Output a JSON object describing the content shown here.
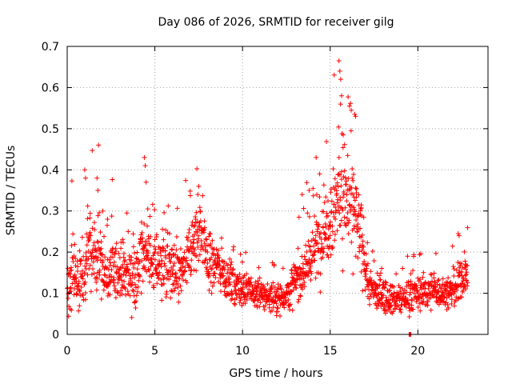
{
  "chart_data": {
    "type": "scatter",
    "title": "Day 086 of 2026, SRMTID for receiver gilg",
    "xlabel": "GPS time / hours",
    "ylabel": "SRMTID / TECUs",
    "xlim": [
      0,
      24
    ],
    "ylim": [
      0,
      0.7
    ],
    "xticks": [
      0,
      5,
      10,
      15,
      20
    ],
    "xtick_labels": [
      "0",
      "5",
      "10",
      "15",
      "20"
    ],
    "yticks": [
      0,
      0.1,
      0.2,
      0.3,
      0.4,
      0.5,
      0.6,
      0.7
    ],
    "ytick_labels": [
      "0",
      "0.1",
      "0.2",
      "0.3",
      "0.4",
      "0.5",
      "0.6",
      "0.7"
    ],
    "grid": true,
    "marker": "+",
    "color": "#ff0000",
    "envelope": [
      [
        0.0,
        0.12,
        0.06
      ],
      [
        0.3,
        0.16,
        0.06
      ],
      [
        0.6,
        0.12,
        0.05
      ],
      [
        1.0,
        0.14,
        0.05
      ],
      [
        1.2,
        0.22,
        0.08
      ],
      [
        1.6,
        0.16,
        0.05
      ],
      [
        1.8,
        0.22,
        0.07
      ],
      [
        2.2,
        0.14,
        0.05
      ],
      [
        2.8,
        0.15,
        0.05
      ],
      [
        3.4,
        0.15,
        0.05
      ],
      [
        4.0,
        0.14,
        0.05
      ],
      [
        4.4,
        0.22,
        0.07
      ],
      [
        4.8,
        0.17,
        0.05
      ],
      [
        5.4,
        0.18,
        0.06
      ],
      [
        6.0,
        0.15,
        0.05
      ],
      [
        6.6,
        0.15,
        0.05
      ],
      [
        7.2,
        0.22,
        0.06
      ],
      [
        7.6,
        0.26,
        0.06
      ],
      [
        8.0,
        0.18,
        0.05
      ],
      [
        8.6,
        0.17,
        0.04
      ],
      [
        9.2,
        0.13,
        0.035
      ],
      [
        10.0,
        0.11,
        0.03
      ],
      [
        11.0,
        0.095,
        0.025
      ],
      [
        12.0,
        0.09,
        0.025
      ],
      [
        12.6,
        0.1,
        0.03
      ],
      [
        13.2,
        0.14,
        0.04
      ],
      [
        13.8,
        0.18,
        0.05
      ],
      [
        14.4,
        0.23,
        0.06
      ],
      [
        14.8,
        0.27,
        0.07
      ],
      [
        15.3,
        0.32,
        0.09
      ],
      [
        15.6,
        0.36,
        0.1
      ],
      [
        16.0,
        0.33,
        0.09
      ],
      [
        16.4,
        0.29,
        0.08
      ],
      [
        16.9,
        0.2,
        0.06
      ],
      [
        17.2,
        0.12,
        0.04
      ],
      [
        17.6,
        0.1,
        0.03
      ],
      [
        18.5,
        0.09,
        0.025
      ],
      [
        19.0,
        0.08,
        0.025
      ],
      [
        19.6,
        0.1,
        0.03
      ],
      [
        20.2,
        0.1,
        0.03
      ],
      [
        21.0,
        0.11,
        0.03
      ],
      [
        21.6,
        0.1,
        0.03
      ],
      [
        22.2,
        0.11,
        0.03
      ],
      [
        22.5,
        0.14,
        0.04
      ],
      [
        22.8,
        0.14,
        0.03
      ]
    ],
    "outliers": [
      [
        1.0,
        0.4
      ],
      [
        1.05,
        0.38
      ],
      [
        1.7,
        0.38
      ],
      [
        1.75,
        0.35
      ],
      [
        2.3,
        0.28
      ],
      [
        4.4,
        0.43
      ],
      [
        4.45,
        0.41
      ],
      [
        4.5,
        0.37
      ],
      [
        7.5,
        0.36
      ],
      [
        7.45,
        0.34
      ],
      [
        15.5,
        0.665
      ],
      [
        15.55,
        0.64
      ],
      [
        15.6,
        0.62
      ],
      [
        15.65,
        0.58
      ],
      [
        16.1,
        0.555
      ],
      [
        16.2,
        0.545
      ],
      [
        16.4,
        0.535
      ],
      [
        16.45,
        0.53
      ],
      [
        14.2,
        0.43
      ],
      [
        13.8,
        0.35
      ],
      [
        13.4,
        0.34
      ],
      [
        22.3,
        0.245
      ],
      [
        22.35,
        0.24
      ],
      [
        19.5,
        0.0
      ],
      [
        19.55,
        0.0
      ],
      [
        19.6,
        0.0
      ]
    ]
  }
}
